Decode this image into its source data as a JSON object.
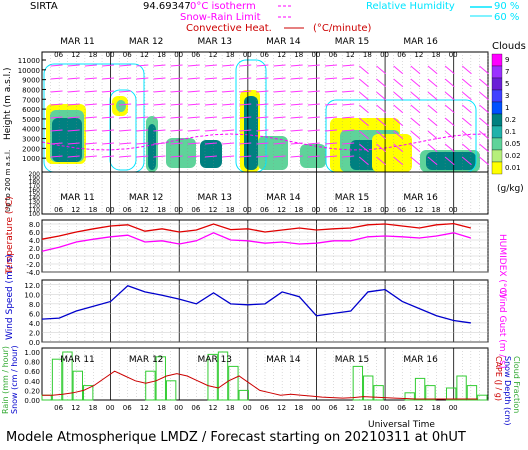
{
  "header": {
    "station": "SIRTA",
    "coords": "94.69347",
    "legend_0c": "0°C isotherm",
    "legend_snow": "Snow-Rain Limit",
    "legend_conv": "Convective Heat.",
    "legend_conv_unit": "(°C/minute)",
    "legend_rh": "Relative Humidity",
    "legend_rh_90": "90 %",
    "legend_rh_60": "60 %",
    "colors": {
      "isotherm": "#ff00ff",
      "snow": "#ff00ff",
      "convective": "#cc0000",
      "rh": "#00e5ff"
    }
  },
  "days": [
    "MAR 11",
    "MAR 12",
    "MAR 13",
    "MAR 14",
    "MAR 15",
    "MAR 16"
  ],
  "hour_ticks": [
    "06",
    "12",
    "18",
    "00"
  ],
  "footer": "Modele Atmospherique LMDZ / Forecast starting on 20210311 at 0hUT",
  "chart_data": [
    {
      "type": "heatmap",
      "name_panel": "clouds",
      "ylabel": "Height (m a.s.l.)",
      "ylabel2": "Up to 200 m a.s.l.",
      "yticks_upper": [
        1000,
        2000,
        3000,
        4000,
        5000,
        6000,
        7000,
        8000,
        9000,
        10000,
        11000
      ],
      "yticks_lower": [
        100,
        110,
        120,
        130,
        140,
        150,
        160,
        170,
        180,
        190,
        200
      ],
      "colorbar_title": "Clouds",
      "colorbar_labels": [
        "9",
        "7",
        "5",
        "3",
        "1",
        "0.2",
        "0.1",
        "0.05",
        "0.02",
        "0.01"
      ],
      "colorbar_unit": "(g/kg)",
      "colorbar_colors": [
        "#ff00ff",
        "#9b30ff",
        "#6a1fd6",
        "#4040ff",
        "#0050ff",
        "#008080",
        "#20b2aa",
        "#5fd39a",
        "#b6ef7a",
        "#ffff00"
      ]
    },
    {
      "type": "line",
      "name_panel": "temperature",
      "ylabel": "Temperature (°C)",
      "ylabel2": "HUMIDEX (°C)",
      "yticks": [
        "8.0",
        "6.0",
        "4.0",
        "2.0",
        "0.0",
        "-2.0",
        "-4.0"
      ],
      "ylim": [
        -4,
        9
      ],
      "x_hours": [
        0,
        6,
        12,
        18,
        24,
        30,
        36,
        42,
        48,
        54,
        60,
        66,
        72,
        78,
        84,
        90,
        96,
        102,
        108,
        114,
        120,
        126,
        132,
        138,
        144,
        150
      ],
      "series": [
        {
          "name": "Temperature",
          "color": "#e00000",
          "values": [
            4.2,
            5.0,
            6.0,
            6.8,
            7.5,
            7.8,
            6.2,
            6.8,
            6.0,
            6.5,
            8.0,
            6.6,
            6.8,
            6.0,
            6.5,
            7.0,
            6.5,
            6.8,
            7.0,
            7.8,
            8.0,
            7.5,
            7.0,
            7.8,
            8.1,
            7.0
          ]
        },
        {
          "name": "HUMIDEX",
          "color": "#ff00ff",
          "values": [
            1.2,
            2.2,
            3.5,
            4.2,
            4.8,
            5.2,
            3.5,
            3.8,
            3.0,
            3.8,
            5.8,
            4.0,
            3.8,
            3.2,
            3.5,
            3.0,
            3.2,
            3.8,
            3.8,
            4.8,
            5.0,
            4.8,
            4.5,
            5.0,
            5.8,
            4.5
          ]
        }
      ]
    },
    {
      "type": "line",
      "name_panel": "wind",
      "ylabel": "Wind Speed (m / s)",
      "ylabel2": "Wind Gust (m / s)",
      "yticks": [
        "12.0",
        "10.0",
        "8.0",
        "6.0",
        "4.0",
        "2.0",
        "0.0"
      ],
      "ylim": [
        0,
        13
      ],
      "x_hours": [
        0,
        6,
        12,
        18,
        24,
        30,
        36,
        42,
        48,
        54,
        60,
        66,
        72,
        78,
        84,
        90,
        96,
        102,
        108,
        114,
        120,
        126,
        132,
        138,
        144,
        150
      ],
      "series": [
        {
          "name": "Wind Speed",
          "color": "#0000cc",
          "values": [
            4.8,
            5.0,
            6.5,
            7.5,
            8.5,
            11.8,
            10.5,
            9.8,
            9.0,
            8.0,
            10.3,
            8.0,
            7.8,
            8.0,
            10.5,
            9.5,
            5.5,
            6.0,
            6.5,
            10.5,
            11.0,
            8.5,
            7.0,
            5.5,
            4.5,
            4.0
          ]
        }
      ]
    },
    {
      "type": "bar",
      "name_panel": "precip",
      "ylabel": "Rain (mm / hour)",
      "ylabel_b": "Snow (cm / hour)",
      "ylabel2": "CAPE (J / g)",
      "ylabel2_b": "Snow Depth (cm)",
      "ylabel2_c": "Cloud Fraction",
      "yticks": [
        "1.00",
        "0.80",
        "0.60",
        "0.40",
        "0.20",
        "0.00"
      ],
      "ylim": [
        0,
        1
      ],
      "bars": [
        0.1,
        0.85,
        1.0,
        0.6,
        0.3,
        0,
        0,
        0,
        0,
        0,
        0.6,
        0.9,
        0.4,
        0,
        0,
        0,
        0.95,
        1.0,
        0.7,
        0.2,
        0,
        0,
        0,
        0,
        0,
        0,
        0,
        0,
        0,
        0,
        0.7,
        0.5,
        0.3,
        0,
        0,
        0.15,
        0.45,
        0.3,
        0,
        0.25,
        0.5,
        0.3,
        0.1
      ],
      "cape": [
        0.1,
        0.1,
        0.12,
        0.15,
        0.2,
        0.3,
        0.45,
        0.6,
        0.5,
        0.4,
        0.35,
        0.4,
        0.5,
        0.55,
        0.5,
        0.4,
        0.3,
        0.25,
        0.4,
        0.5,
        0.35,
        0.2,
        0.15,
        0.1,
        0.12,
        0.1,
        0.08,
        0.06,
        0.05,
        0.04,
        0.05,
        0.07,
        0.06,
        0.05,
        0.04,
        0.03,
        0.02,
        0.02,
        0.02,
        0.02,
        0.02,
        0.02,
        0.02
      ],
      "bar_color": "#33cc33",
      "cape_color": "#cc0000"
    }
  ],
  "xlabel": "Universal Time"
}
